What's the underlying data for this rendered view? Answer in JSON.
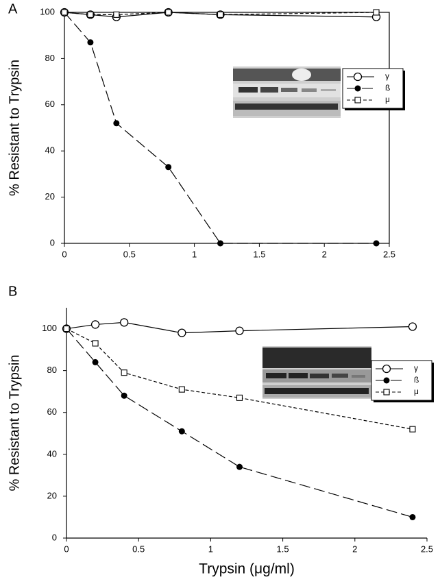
{
  "chart_data": [
    {
      "type": "line",
      "panel": "A",
      "ylabel": "%  Resistant to Trypsin",
      "x": [
        0,
        0.2,
        0.4,
        0.8,
        1.2,
        2.4
      ],
      "xlim": [
        0,
        2.5
      ],
      "xticks": [
        0,
        0.5,
        1,
        1.5,
        2,
        2.5
      ],
      "ylim": [
        0,
        100
      ],
      "yticks": [
        0,
        20,
        40,
        60,
        80,
        100
      ],
      "series": [
        {
          "name": "γ",
          "color": "#000000",
          "marker": "circle",
          "line_style": "solid",
          "values": [
            100,
            99,
            98,
            100,
            99,
            98
          ]
        },
        {
          "name": "ß",
          "color": "#000000",
          "marker": "dot",
          "line_style": "long-dash",
          "values": [
            100,
            87,
            52,
            33,
            0,
            0
          ]
        },
        {
          "name": "μ",
          "color": "#000000",
          "marker": "square",
          "line_style": "short-dash",
          "values": [
            100,
            99,
            99,
            100,
            99,
            100
          ]
        }
      ]
    },
    {
      "type": "line",
      "panel": "B",
      "ylabel": "% Resistant to Trypsin",
      "xlabel": "Trypsin (μg/ml)",
      "x": [
        0,
        0.2,
        0.4,
        0.8,
        1.2,
        2.4
      ],
      "xlim": [
        0,
        2.5
      ],
      "xticks": [
        0,
        0.5,
        1,
        1.5,
        2,
        2.5
      ],
      "ylim": [
        0,
        110
      ],
      "yticks": [
        0,
        20,
        40,
        60,
        80,
        100
      ],
      "series": [
        {
          "name": "γ",
          "color": "#000000",
          "marker": "circle",
          "line_style": "solid",
          "values": [
            100,
            102,
            103,
            98,
            99,
            101
          ]
        },
        {
          "name": "ß",
          "color": "#000000",
          "marker": "dot",
          "line_style": "long-dash",
          "values": [
            100,
            84,
            68,
            51,
            34,
            10
          ]
        },
        {
          "name": "μ",
          "color": "#000000",
          "marker": "square",
          "line_style": "short-dash",
          "values": [
            100,
            93,
            79,
            71,
            67,
            52
          ]
        }
      ]
    }
  ]
}
